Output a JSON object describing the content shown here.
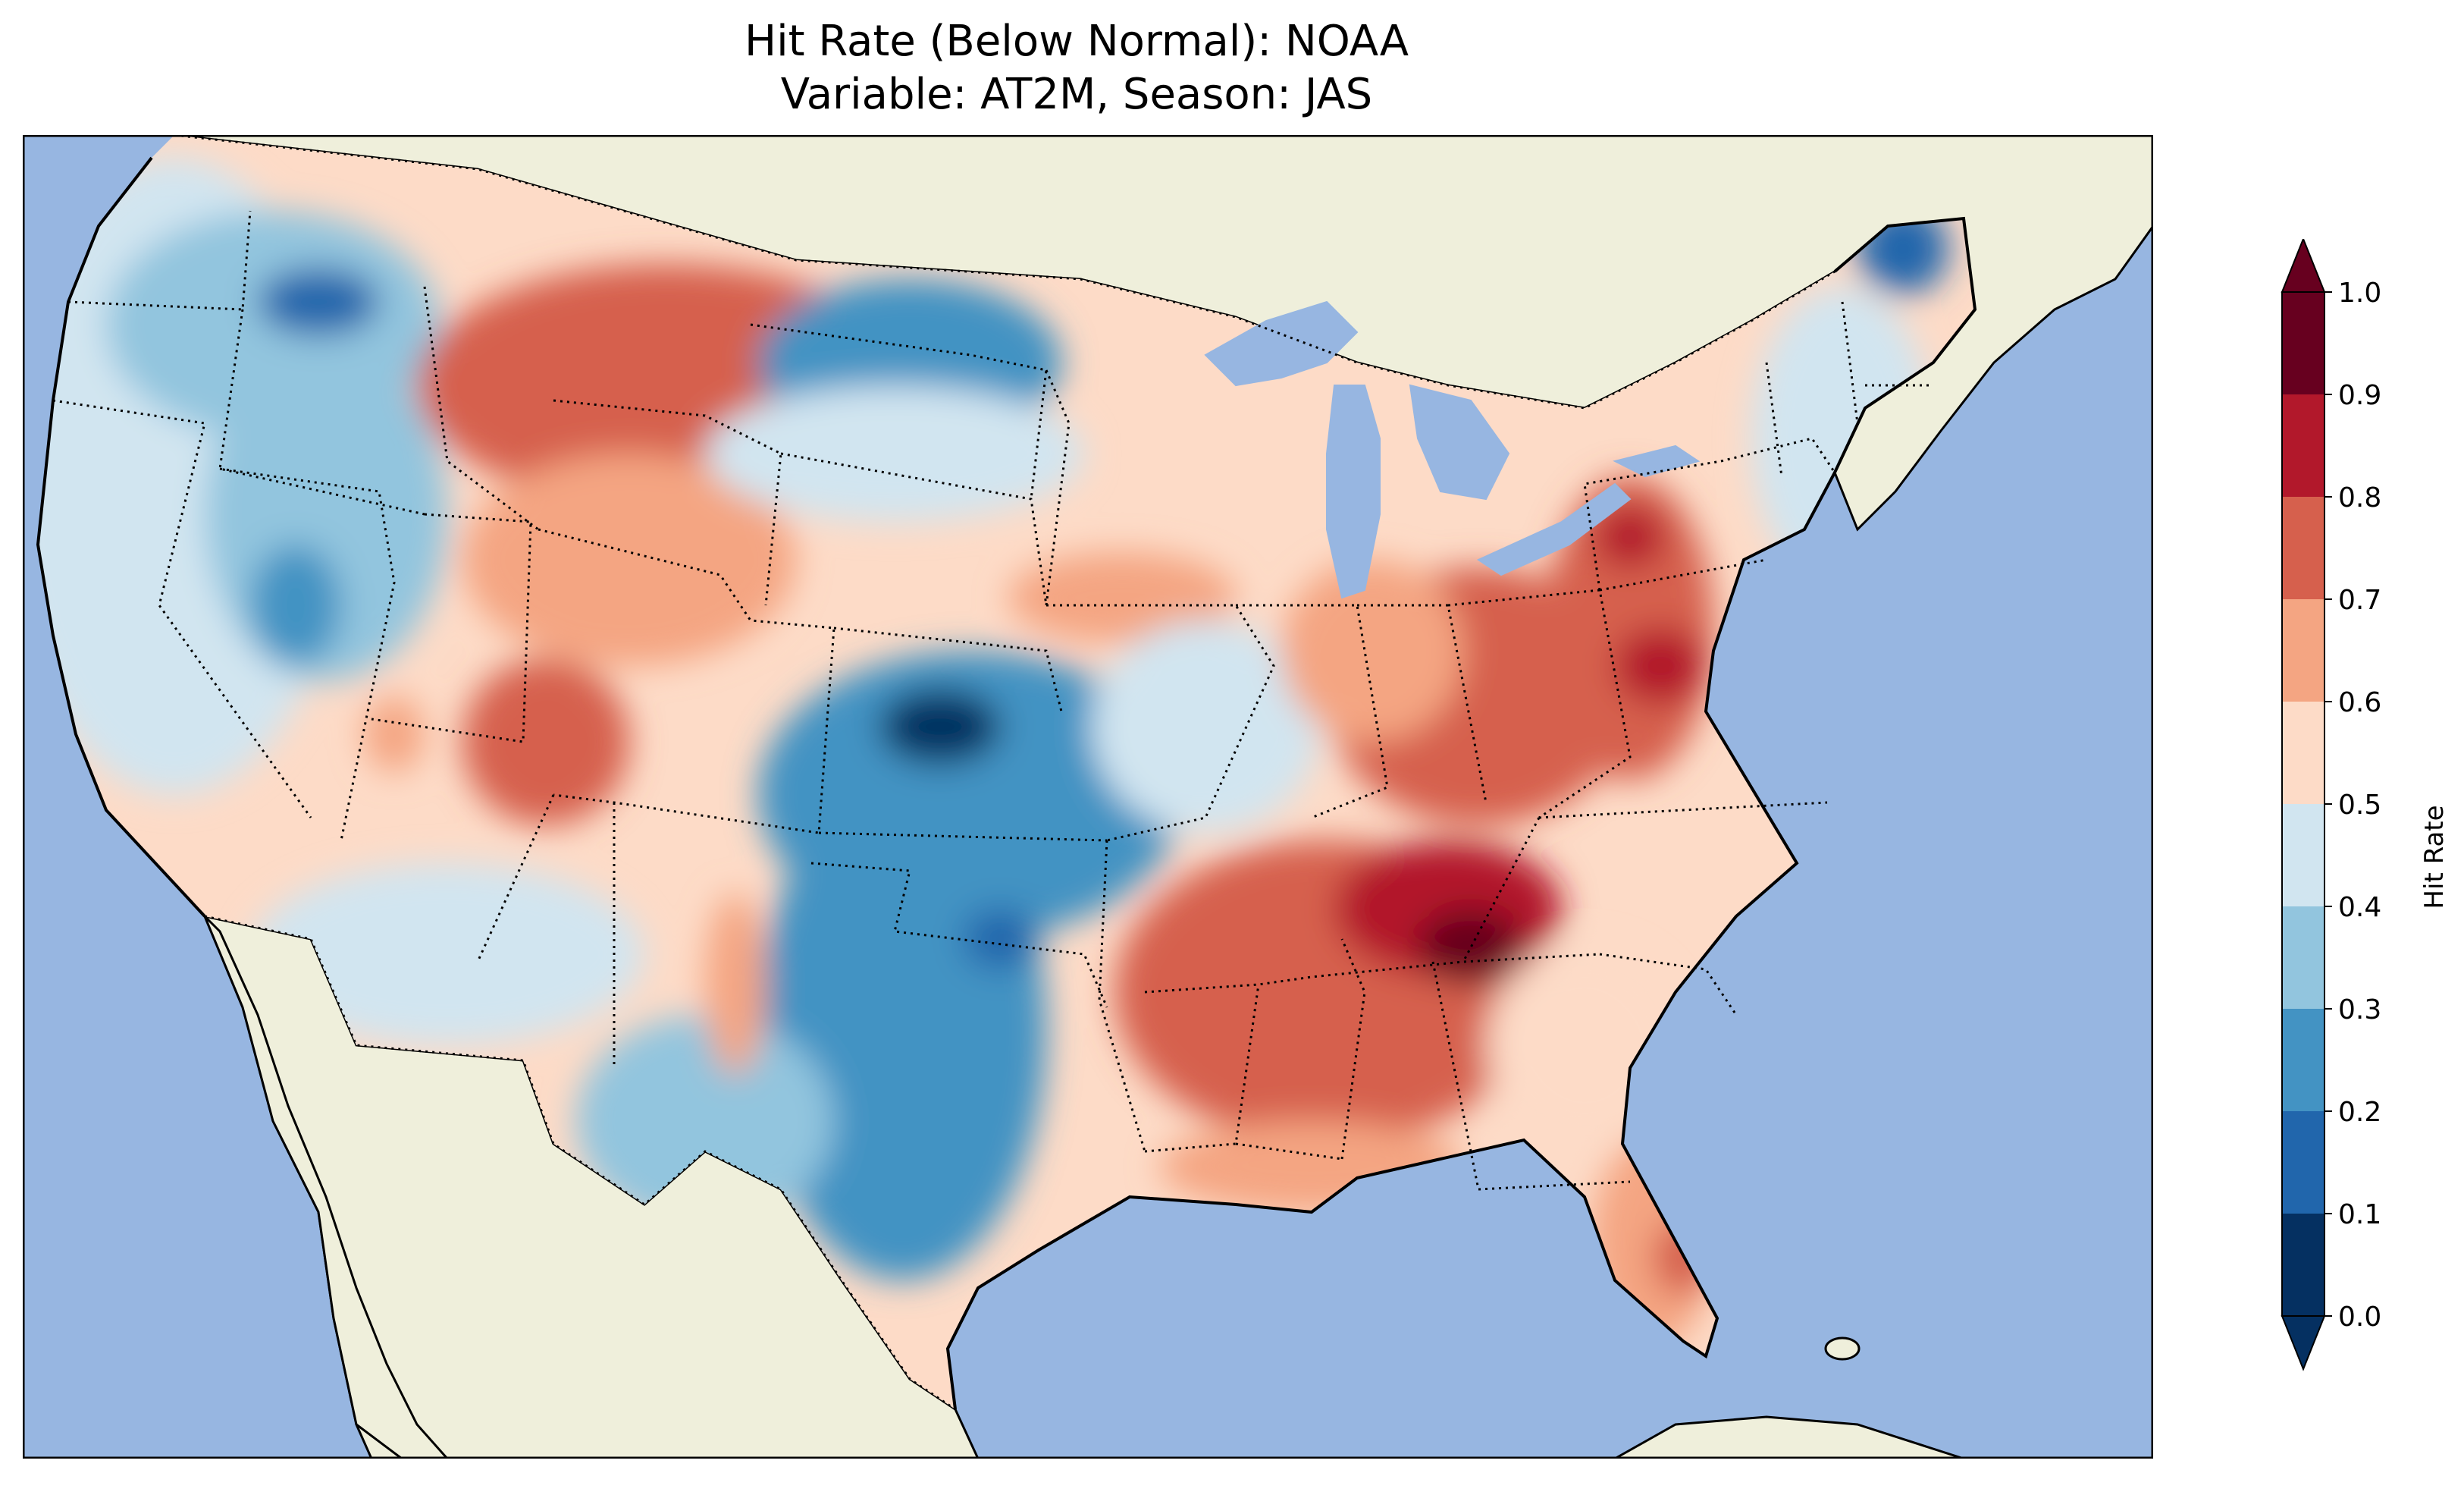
{
  "title_line1": "Hit Rate (Below Normal): NOAA",
  "title_line2": "Variable: AT2M, Season: JAS",
  "map": {
    "projection": "lambert-conformal",
    "region": "Contiguous United States",
    "ocean_color": "#97b6e1",
    "land_color": "#efefdb",
    "coastline_color": "#000000",
    "borders_style": "dotted"
  },
  "colorbar": {
    "label": "Hit Rate",
    "ticks": [
      "0.0",
      "0.1",
      "0.2",
      "0.3",
      "0.4",
      "0.5",
      "0.6",
      "0.7",
      "0.8",
      "0.9",
      "1.0"
    ],
    "colors": [
      "#053061",
      "#2166ac",
      "#4393c3",
      "#92c5de",
      "#d1e5f0",
      "#fddbc7",
      "#f4a582",
      "#d6604d",
      "#b2182b",
      "#67001f"
    ],
    "extend": "both"
  },
  "regions": [
    {
      "name": "pacific-northwest-blue",
      "value": 0.25
    },
    {
      "name": "northern-plains-red",
      "value": 0.72
    },
    {
      "name": "northern-great-plains-blue",
      "value": 0.3
    },
    {
      "name": "colorado-utah-red",
      "value": 0.7
    },
    {
      "name": "kansas-nebraska-blue",
      "value": 0.05
    },
    {
      "name": "oklahoma-texas-blue",
      "value": 0.25
    },
    {
      "name": "southeast-red",
      "value": 0.8
    },
    {
      "name": "tennessee-alabama-dark-red",
      "value": 0.95
    },
    {
      "name": "ohio-valley-red",
      "value": 0.72
    },
    {
      "name": "pennsylvania-virginia-dark-red",
      "value": 0.92
    },
    {
      "name": "florida-red",
      "value": 0.7
    },
    {
      "name": "maine-blue",
      "value": 0.2
    }
  ]
}
